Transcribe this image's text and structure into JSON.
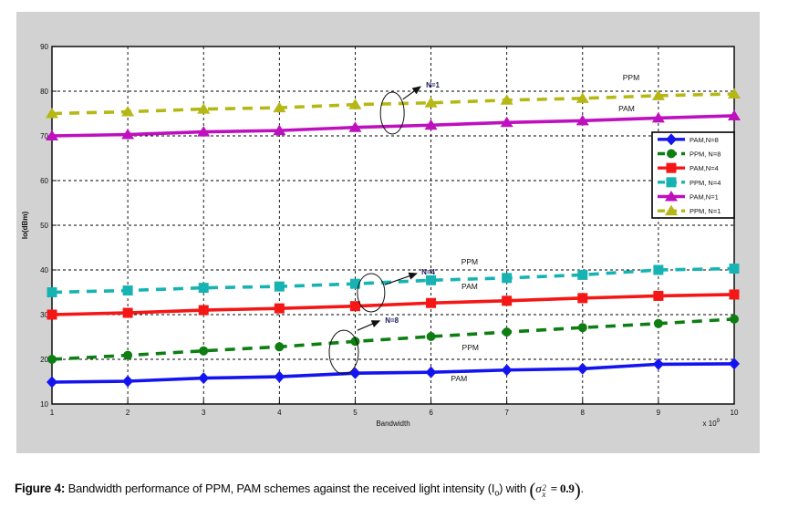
{
  "caption": {
    "label": "Figure 4:",
    "part1": " Bandwidth performance of PPM, PAM schemes against the received light intensity (I",
    "sub_o": "o",
    "part2": ") with ",
    "formula": {
      "open": "(",
      "sigma": "σ",
      "sup": "2",
      "sub": "x",
      "eq": " = 0.9",
      "close": ")"
    },
    "period": "."
  },
  "chart_data": {
    "type": "line",
    "title": "",
    "xlabel": "Bandwidth",
    "x_multiplier_base": "x 10",
    "x_multiplier_exp": "9",
    "ylabel": "Io(dBm)",
    "xlim": [
      1,
      10
    ],
    "ylim": [
      10,
      90
    ],
    "x_ticks": [
      1,
      2,
      3,
      4,
      5,
      6,
      7,
      8,
      9,
      10
    ],
    "y_ticks": [
      10,
      20,
      30,
      40,
      50,
      60,
      70,
      80,
      90
    ],
    "grid": true,
    "legend_position": "right",
    "background_color": "#d2d2d2",
    "plot_color": "#ffffff",
    "x": [
      1,
      2,
      3,
      4,
      5,
      6,
      7,
      8,
      9,
      10
    ],
    "series": [
      {
        "name": "PAM,N=8",
        "color": "#1414f0",
        "style": "solid",
        "marker": "diamond",
        "values": [
          14.9,
          15.1,
          15.8,
          16.1,
          16.9,
          17.1,
          17.6,
          17.9,
          18.9,
          19.0
        ]
      },
      {
        "name": "PPM, N=8",
        "color": "#0e7e12",
        "style": "dashed",
        "marker": "circle",
        "values": [
          20.0,
          20.9,
          21.9,
          22.8,
          24.0,
          25.1,
          26.1,
          27.1,
          28.0,
          29.0
        ]
      },
      {
        "name": "PAM,N=4",
        "color": "#f51616",
        "style": "solid",
        "marker": "square",
        "values": [
          30.0,
          30.4,
          31.0,
          31.4,
          31.9,
          32.6,
          33.1,
          33.7,
          34.2,
          34.5
        ]
      },
      {
        "name": "PPM, N=4",
        "color": "#17b3b3",
        "style": "dashed",
        "marker": "square",
        "values": [
          35.0,
          35.4,
          36.0,
          36.3,
          36.9,
          37.7,
          38.2,
          38.9,
          40.0,
          40.3
        ]
      },
      {
        "name": "PAM,N=1",
        "color": "#bf10bf",
        "style": "solid",
        "marker": "triangle",
        "values": [
          70.0,
          70.3,
          70.9,
          71.2,
          71.9,
          72.4,
          73.0,
          73.4,
          74.0,
          74.5
        ]
      },
      {
        "name": "PPM, N=1",
        "color": "#b5b814",
        "style": "dashed",
        "marker": "triangle",
        "values": [
          75.0,
          75.4,
          76.0,
          76.3,
          77.0,
          77.4,
          78.0,
          78.4,
          79.0,
          79.4
        ]
      }
    ],
    "annotations": [
      {
        "text": "N=1",
        "text_at": [
          5.91,
          81.4
        ],
        "ellipse_at": [
          5.49,
          75.1
        ],
        "ellipse_rpx": [
          13,
          23
        ],
        "arrow_from": [
          5.63,
          78.2
        ],
        "arrow_to": [
          5.86,
          81.0
        ]
      },
      {
        "text": "N=4",
        "text_at": [
          5.85,
          39.6
        ],
        "ellipse_at": [
          5.21,
          34.9
        ],
        "ellipse_rpx": [
          15,
          21
        ],
        "arrow_from": [
          5.39,
          36.7
        ],
        "arrow_to": [
          5.81,
          39.2
        ]
      },
      {
        "text": "N=8",
        "text_at": [
          5.37,
          28.8
        ],
        "ellipse_at": [
          4.85,
          21.6
        ],
        "ellipse_rpx": [
          16,
          24
        ],
        "arrow_from": [
          5.03,
          26.5
        ],
        "arrow_to": [
          5.32,
          28.6
        ]
      }
    ],
    "curve_labels": [
      {
        "text": "PPM",
        "at": [
          8.64,
          83.1
        ]
      },
      {
        "text": "PAM",
        "at": [
          8.58,
          76.1
        ]
      },
      {
        "text": "PPM",
        "at": [
          6.51,
          41.8
        ]
      },
      {
        "text": "PAM",
        "at": [
          6.51,
          36.3
        ]
      },
      {
        "text": "PPM",
        "at": [
          6.52,
          22.7
        ]
      },
      {
        "text": "PAM",
        "at": [
          6.37,
          15.7
        ]
      }
    ]
  }
}
